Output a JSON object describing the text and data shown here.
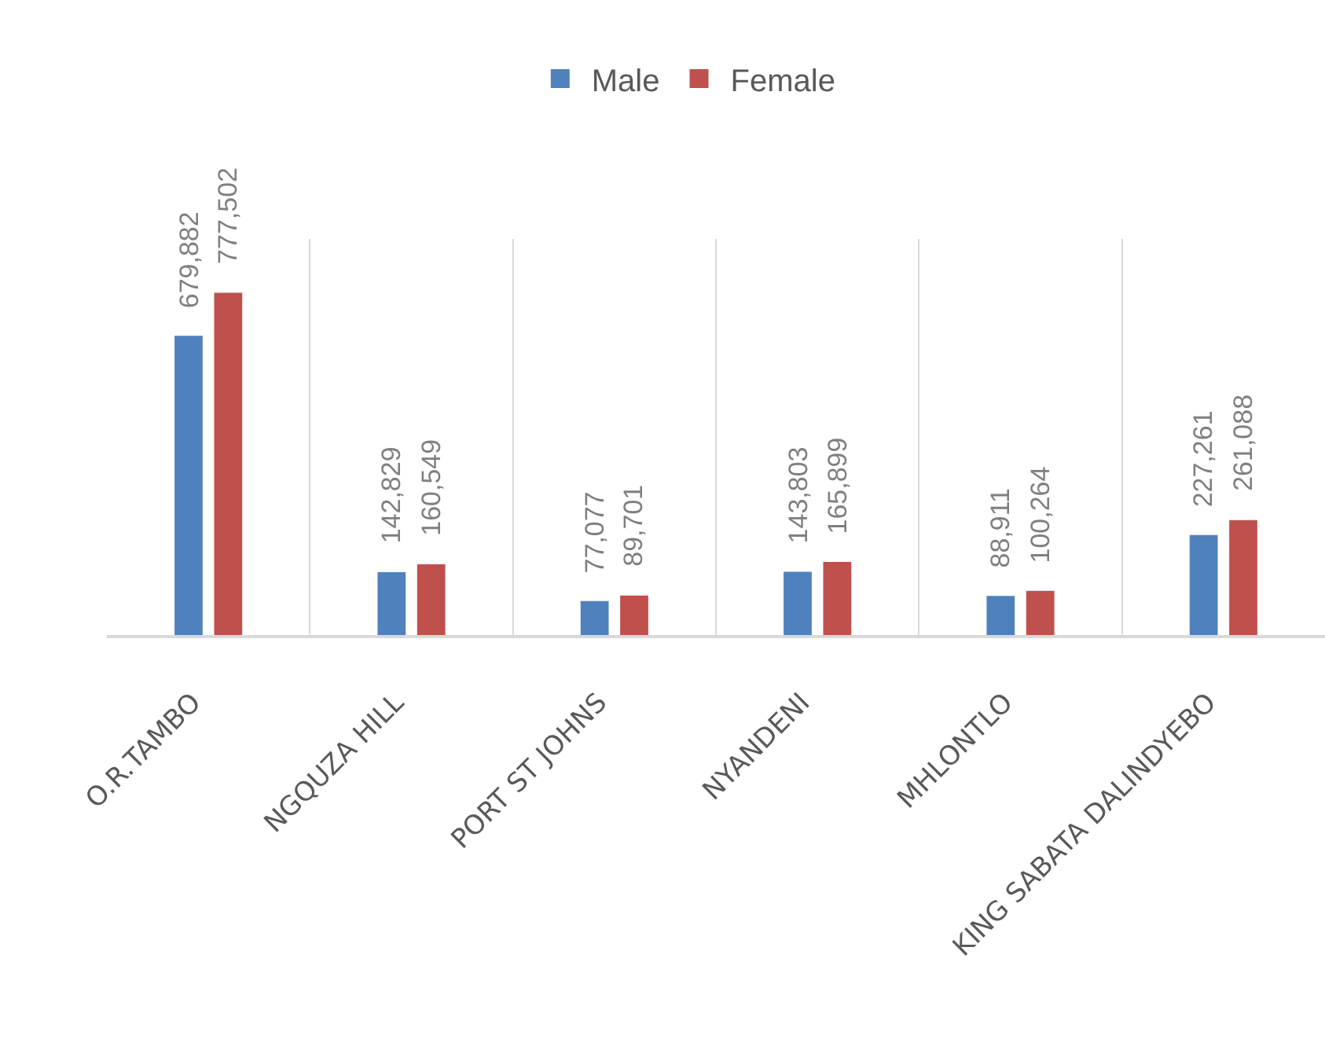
{
  "chart_data": {
    "type": "bar",
    "categories": [
      "O.R.TAMBO",
      "NGQUZA HILL",
      "PORT ST JOHNS",
      "NYANDENI",
      "MHLONTLO",
      "KING SABATA DALINDYEBO"
    ],
    "series": [
      {
        "name": "Male",
        "color": "#4f81bd",
        "values": [
          679882,
          142829,
          77077,
          143803,
          88911,
          227261
        ],
        "value_labels": [
          "679,882",
          "142,829",
          "77,077",
          "143,803",
          "88,911",
          "227,261"
        ]
      },
      {
        "name": "Female",
        "color": "#c0504d",
        "values": [
          777502,
          160549,
          89701,
          165899,
          100264,
          261088
        ],
        "value_labels": [
          "777,502",
          "160,549",
          "89,701",
          "165,899",
          "100,264",
          "261,088"
        ]
      }
    ],
    "grid": "x",
    "legend": "top",
    "tick_labels": "x"
  }
}
